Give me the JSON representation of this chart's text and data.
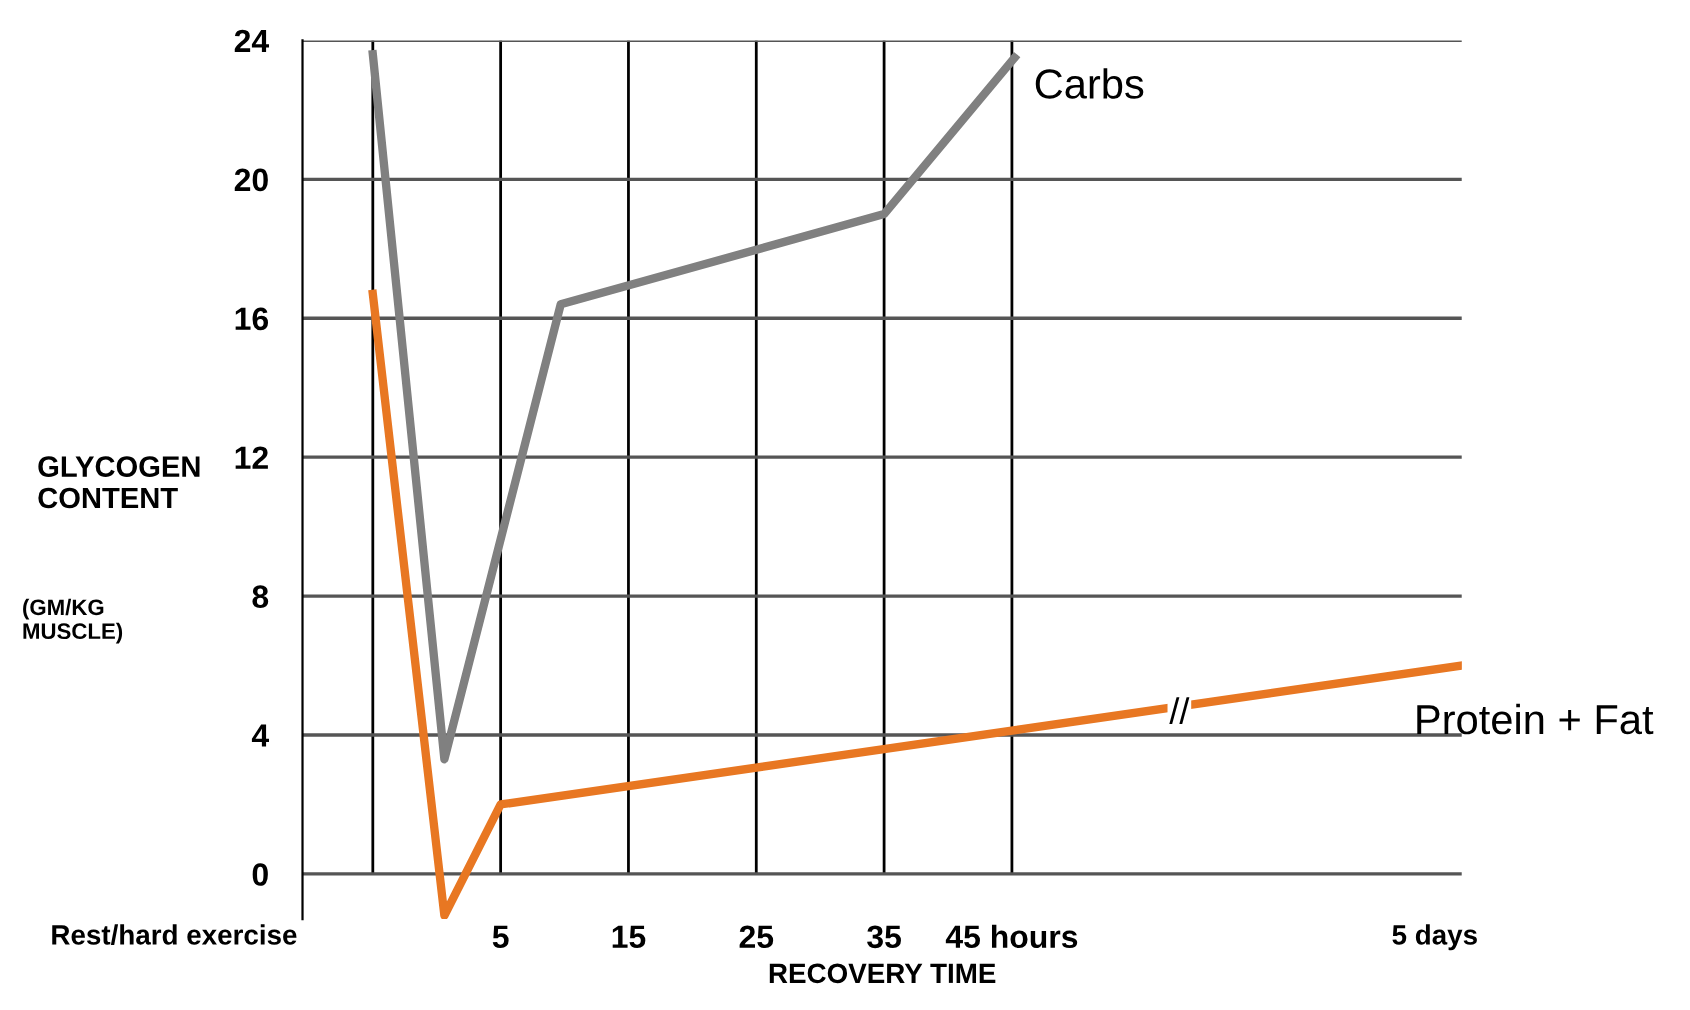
{
  "chart_data": {
    "type": "line",
    "xlabel": "RECOVERY TIME",
    "ylabel": "GLYCOGEN\nCONTENT",
    "xlim": [
      -10.5,
      80.2
    ],
    "ylim": [
      -1.3,
      24
    ],
    "xticks": [
      {
        "value": -5,
        "label": null
      },
      5,
      15,
      25,
      35,
      {
        "value": 45,
        "label": "45 hours"
      }
    ],
    "yticks": [
      0,
      4,
      8,
      12,
      16,
      20,
      24
    ],
    "grid": true,
    "marker": "none",
    "line_style": "solid",
    "series": [
      {
        "name": "Carbs",
        "color": "#808080",
        "x": [
          -5,
          0.6,
          9.7,
          35,
          45.2
        ],
        "values": [
          23.6,
          3.3,
          16.4,
          19.0,
          23.5
        ]
      },
      {
        "name": "Protein + Fat",
        "color": "#e87722",
        "x": [
          -5,
          0.6,
          5,
          80.2
        ],
        "values": [
          16.7,
          -1.2,
          2.0,
          6.0
        ]
      }
    ],
    "annotations": [
      "(GM/KG\nMUSCLE)",
      "Rest/hard exercise",
      "5 days",
      {
        "text": "//",
        "x": 58.1,
        "y": 4.6
      }
    ]
  }
}
